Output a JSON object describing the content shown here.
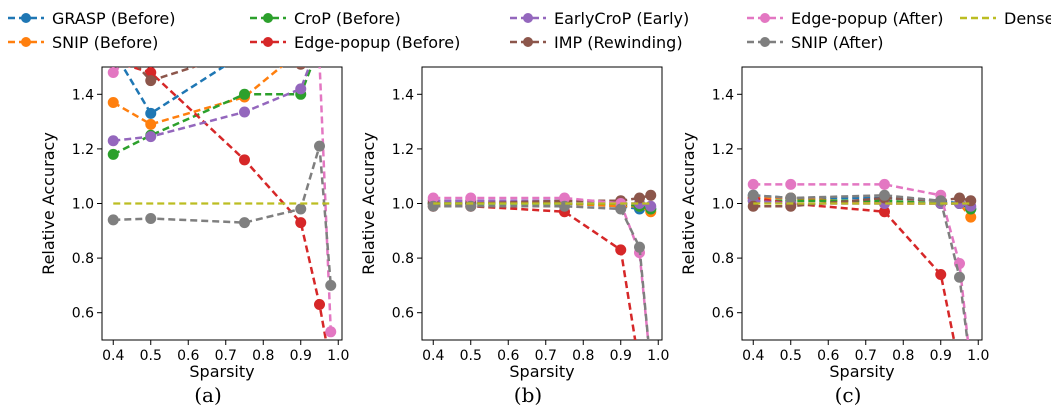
{
  "legend": [
    {
      "label": "GRASP (Before)",
      "color": "#1f77b4"
    },
    {
      "label": "SNIP (Before)",
      "color": "#ff7f0e"
    },
    {
      "label": "CroP (Before)",
      "color": "#2ca02c"
    },
    {
      "label": "Edge-popup (Before)",
      "color": "#d62728"
    },
    {
      "label": "EarlyCroP (Early)",
      "color": "#9467bd"
    },
    {
      "label": "IMP (Rewinding)",
      "color": "#8c564b"
    },
    {
      "label": "Edge-popup (After)",
      "color": "#e377c2"
    },
    {
      "label": "SNIP (After)",
      "color": "#7f7f7f"
    },
    {
      "label": "Dense",
      "color": "#bcbd22"
    }
  ],
  "chart_data": [
    {
      "type": "line",
      "caption": "(a)",
      "xlabel": "Sparsity",
      "ylabel": "Relative Accuracy",
      "xlim": [
        0.37,
        1.01
      ],
      "ylim": [
        0.5,
        1.5
      ],
      "xticks": [
        "0.4",
        "0.5",
        "0.6",
        "0.7",
        "0.8",
        "0.9",
        "1.0"
      ],
      "yticks": [
        "0.6",
        "0.8",
        "1.0",
        "1.2",
        "1.4"
      ],
      "grid": false,
      "x": [
        0.4,
        0.5,
        0.75,
        0.9,
        0.95,
        0.98
      ],
      "series": [
        {
          "name": "GRASP (Before)",
          "values": [
            1.56,
            1.33,
            1.55,
            null,
            null,
            null
          ]
        },
        {
          "name": "SNIP (Before)",
          "values": [
            1.37,
            1.29,
            1.39,
            1.56,
            null,
            null
          ]
        },
        {
          "name": "CroP (Before)",
          "values": [
            1.18,
            1.25,
            1.4,
            1.4,
            1.58,
            null
          ]
        },
        {
          "name": "Edge-popup (Before)",
          "values": [
            1.52,
            1.48,
            1.16,
            0.93,
            0.63,
            0.4
          ]
        },
        {
          "name": "EarlyCroP (Early)",
          "values": [
            1.23,
            1.245,
            1.335,
            1.42,
            1.6,
            null
          ]
        },
        {
          "name": "IMP (Rewinding)",
          "values": [
            1.6,
            1.45,
            1.56,
            1.51,
            1.56,
            null
          ]
        },
        {
          "name": "Edge-popup (After)",
          "values": [
            1.48,
            1.6,
            null,
            null,
            1.52,
            0.53
          ]
        },
        {
          "name": "SNIP (After)",
          "values": [
            0.94,
            0.945,
            0.93,
            0.98,
            1.21,
            0.7
          ]
        },
        {
          "name": "Dense",
          "values": [
            1.0,
            1.0,
            1.0,
            1.0,
            1.0,
            1.0
          ]
        }
      ]
    },
    {
      "type": "line",
      "caption": "(b)",
      "xlabel": "Sparsity",
      "ylabel": "Relative Accuracy",
      "xlim": [
        0.37,
        1.01
      ],
      "ylim": [
        0.5,
        1.5
      ],
      "xticks": [
        "0.4",
        "0.5",
        "0.6",
        "0.7",
        "0.8",
        "0.9",
        "1.0"
      ],
      "yticks": [
        "0.6",
        "0.8",
        "1.0",
        "1.2",
        "1.4"
      ],
      "grid": false,
      "x": [
        0.4,
        0.5,
        0.75,
        0.9,
        0.95,
        0.98
      ],
      "series": [
        {
          "name": "GRASP (Before)",
          "values": [
            1.0,
            1.0,
            1.0,
            0.99,
            0.98,
            0.98
          ]
        },
        {
          "name": "SNIP (Before)",
          "values": [
            1.01,
            1.01,
            1.0,
            0.99,
            0.99,
            0.97
          ]
        },
        {
          "name": "CroP (Before)",
          "values": [
            1.0,
            1.0,
            1.0,
            1.0,
            0.99,
            0.98
          ]
        },
        {
          "name": "Edge-popup (Before)",
          "values": [
            0.99,
            0.99,
            0.97,
            0.83,
            0.4,
            null
          ]
        },
        {
          "name": "EarlyCroP (Early)",
          "values": [
            1.01,
            1.01,
            1.01,
            1.0,
            1.0,
            0.99
          ]
        },
        {
          "name": "IMP (Rewinding)",
          "values": [
            1.0,
            1.0,
            1.01,
            1.01,
            1.02,
            1.03
          ]
        },
        {
          "name": "Edge-popup (After)",
          "values": [
            1.02,
            1.02,
            1.02,
            1.0,
            0.82,
            0.4
          ]
        },
        {
          "name": "SNIP (After)",
          "values": [
            0.99,
            0.99,
            0.99,
            0.98,
            0.84,
            0.4
          ]
        },
        {
          "name": "Dense",
          "values": [
            1.0,
            1.0,
            1.0,
            1.0,
            1.0,
            1.0
          ]
        }
      ]
    },
    {
      "type": "line",
      "caption": "(c)",
      "xlabel": "Sparsity",
      "ylabel": "Relative Accuracy",
      "xlim": [
        0.37,
        1.01
      ],
      "ylim": [
        0.5,
        1.5
      ],
      "xticks": [
        "0.4",
        "0.5",
        "0.6",
        "0.7",
        "0.8",
        "0.9",
        "1.0"
      ],
      "yticks": [
        "0.6",
        "0.8",
        "1.0",
        "1.2",
        "1.4"
      ],
      "grid": false,
      "x": [
        0.4,
        0.5,
        0.75,
        0.9,
        0.95,
        0.98
      ],
      "series": [
        {
          "name": "GRASP (Before)",
          "values": [
            1.03,
            1.02,
            1.02,
            1.01,
            1.0,
            0.98
          ]
        },
        {
          "name": "SNIP (Before)",
          "values": [
            1.02,
            1.02,
            1.0,
            1.0,
            1.0,
            0.95
          ]
        },
        {
          "name": "CroP (Before)",
          "values": [
            1.01,
            1.01,
            1.01,
            1.0,
            1.0,
            0.98
          ]
        },
        {
          "name": "Edge-popup (Before)",
          "values": [
            1.02,
            1.0,
            0.97,
            0.74,
            0.4,
            null
          ]
        },
        {
          "name": "EarlyCroP (Early)",
          "values": [
            1.01,
            1.0,
            1.0,
            1.0,
            1.0,
            0.99
          ]
        },
        {
          "name": "IMP (Rewinding)",
          "values": [
            0.99,
            0.99,
            1.02,
            1.01,
            1.02,
            1.01
          ]
        },
        {
          "name": "Edge-popup (After)",
          "values": [
            1.07,
            1.07,
            1.07,
            1.03,
            0.78,
            0.4
          ]
        },
        {
          "name": "SNIP (After)",
          "values": [
            1.03,
            1.02,
            1.03,
            1.01,
            0.73,
            0.4
          ]
        },
        {
          "name": "Dense",
          "values": [
            1.0,
            1.0,
            1.0,
            1.0,
            1.0,
            1.0
          ]
        }
      ]
    }
  ]
}
